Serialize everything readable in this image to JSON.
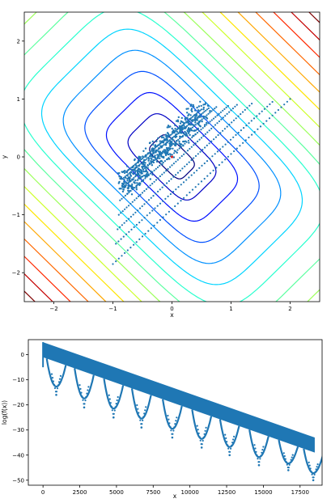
{
  "colors": {
    "scatter": "#1f77b4",
    "marker": "#d62728",
    "contour_levels": [
      "#00007f",
      "#0000c4",
      "#0010ff",
      "#0050ff",
      "#0090ff",
      "#00d4ff",
      "#29ffce",
      "#5cffa0",
      "#9cff5a",
      "#ceff29",
      "#ffe500",
      "#ffa700",
      "#ff6800",
      "#ff2900",
      "#c40000",
      "#7f0000"
    ]
  },
  "chart_data": [
    {
      "type": "scatter",
      "subtype": "contour-with-trajectory",
      "title": "",
      "xlabel": "x",
      "ylabel": "y",
      "xlim": [
        -2.5,
        2.5
      ],
      "ylim": [
        -2.5,
        2.5
      ],
      "xticks": [
        "−2",
        "−1",
        "0",
        "1",
        "2"
      ],
      "yticks": [
        "−2",
        "−1",
        "0",
        "1",
        "2"
      ],
      "grid": false,
      "contour_levels_count": 16,
      "trajectory": {
        "start_points": [
          [
            2.0,
            1.0
          ],
          [
            1.7,
            0.95
          ],
          [
            1.35,
            0.92
          ],
          [
            1.1,
            0.9
          ],
          [
            0.95,
            0.88
          ],
          [
            0.75,
            0.86
          ],
          [
            0.62,
            0.84
          ],
          [
            0.5,
            0.82
          ]
        ],
        "end_points": [
          [
            -1.0,
            -1.85
          ],
          [
            -0.95,
            -1.5
          ],
          [
            -0.92,
            -1.25
          ],
          [
            -0.9,
            -1.0
          ],
          [
            -0.88,
            -0.75
          ],
          [
            -0.86,
            -0.55
          ],
          [
            -0.84,
            -0.38
          ],
          [
            -0.8,
            -0.28
          ]
        ],
        "dense_region": {
          "x": [
            -0.8,
            0.5
          ],
          "y": [
            -0.5,
            0.8
          ]
        }
      },
      "optimum": [
        0.0,
        0.0
      ]
    },
    {
      "type": "scatter",
      "title": "",
      "xlabel": "x",
      "ylabel": "log(f(x))",
      "xlim": [
        -1000,
        19000
      ],
      "ylim": [
        -52,
        6
      ],
      "xticks": [
        0,
        2500,
        5000,
        7500,
        10000,
        12500,
        15000,
        17500
      ],
      "xtick_labels": [
        "0",
        "2500",
        "5000",
        "7500",
        "10000",
        "12500",
        "15000",
        "17500"
      ],
      "yticks": [
        0,
        -10,
        -20,
        -30,
        -40,
        -50
      ],
      "ytick_labels": [
        "0",
        "−10",
        "−20",
        "−30",
        "−40",
        "−50"
      ],
      "grid": false,
      "band_top": {
        "x": [
          0,
          18500
        ],
        "y": [
          5,
          -33
        ]
      },
      "band_bottom": {
        "x": [
          0,
          18500
        ],
        "y": [
          -1,
          -39
        ]
      },
      "dips": [
        {
          "x": 900,
          "y": -16
        },
        {
          "x": 2800,
          "y": -21
        },
        {
          "x": 4800,
          "y": -25
        },
        {
          "x": 6700,
          "y": -29
        },
        {
          "x": 8800,
          "y": -33
        },
        {
          "x": 10800,
          "y": -37
        },
        {
          "x": 12700,
          "y": -40
        },
        {
          "x": 14700,
          "y": -44
        },
        {
          "x": 16700,
          "y": -46
        },
        {
          "x": 18400,
          "y": -50
        }
      ]
    }
  ]
}
